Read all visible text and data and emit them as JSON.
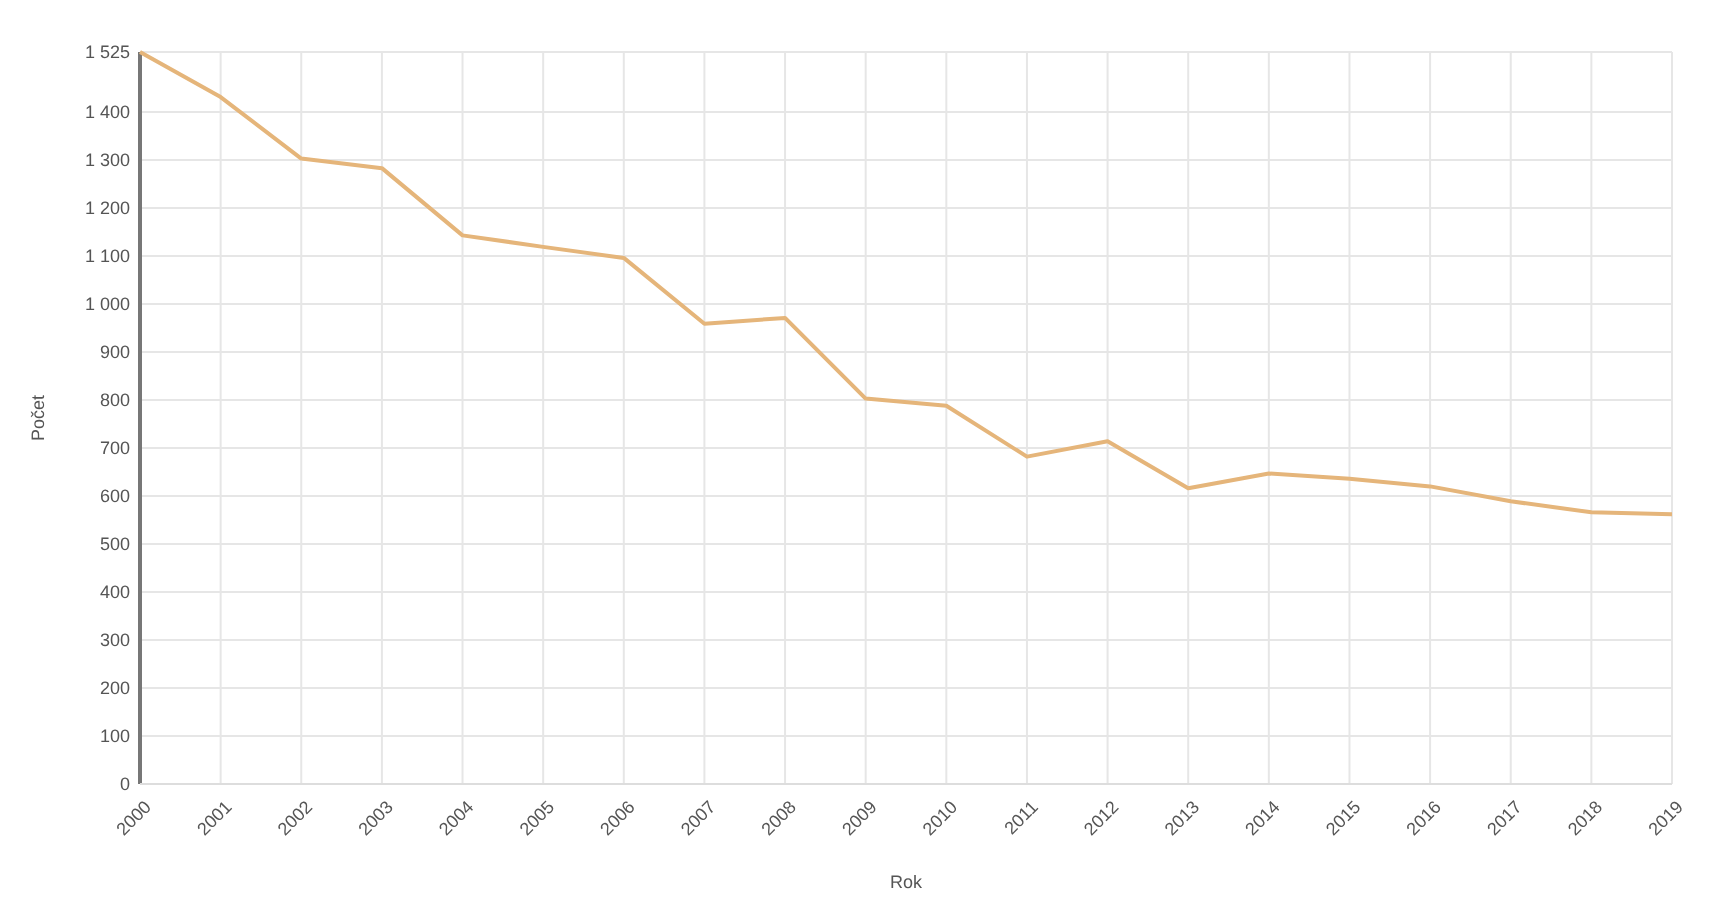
{
  "chart_data": {
    "type": "line",
    "xlabel": "Rok",
    "ylabel": "Počet",
    "categories": [
      "2000",
      "2001",
      "2002",
      "2003",
      "2004",
      "2005",
      "2006",
      "2007",
      "2008",
      "2009",
      "2010",
      "2011",
      "2012",
      "2013",
      "2014",
      "2015",
      "2016",
      "2017",
      "2018",
      "2019"
    ],
    "series": [
      {
        "color": "#e5b57a",
        "values": [
          1525,
          1431,
          1303,
          1283,
          1143,
          1119,
          1096,
          959,
          971,
          803,
          788,
          682,
          714,
          616,
          647,
          636,
          620,
          589,
          566,
          562
        ]
      }
    ],
    "ylim": [
      0,
      1525
    ],
    "yticks": [
      0,
      100,
      200,
      300,
      400,
      500,
      600,
      700,
      800,
      900,
      {
        "value": 1000,
        "label": "1 000"
      },
      {
        "value": 1100,
        "label": "1 100"
      },
      {
        "value": 1200,
        "label": "1 200"
      },
      {
        "value": 1300,
        "label": "1 300"
      },
      {
        "value": 1400,
        "label": "1 400"
      },
      {
        "value": 1525,
        "label": "1 525"
      }
    ],
    "grid": true,
    "marker": "none",
    "line_style": "solid"
  }
}
